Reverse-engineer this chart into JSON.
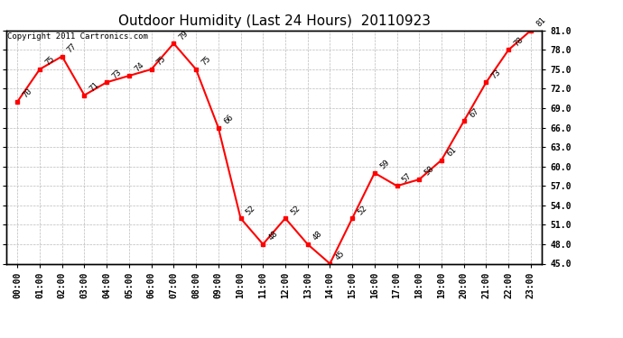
{
  "title": "Outdoor Humidity (Last 24 Hours)  20110923",
  "copyright": "Copyright 2011 Cartronics.com",
  "hours": [
    "00:00",
    "01:00",
    "02:00",
    "03:00",
    "04:00",
    "05:00",
    "06:00",
    "07:00",
    "08:00",
    "09:00",
    "10:00",
    "11:00",
    "12:00",
    "13:00",
    "14:00",
    "15:00",
    "16:00",
    "17:00",
    "18:00",
    "19:00",
    "20:00",
    "21:00",
    "22:00",
    "23:00"
  ],
  "values": [
    70,
    75,
    77,
    71,
    73,
    74,
    75,
    79,
    75,
    66,
    52,
    48,
    52,
    48,
    45,
    52,
    59,
    57,
    58,
    61,
    67,
    73,
    78,
    81
  ],
  "ylim_min": 45.0,
  "ylim_max": 81.0,
  "yticks": [
    45.0,
    48.0,
    51.0,
    54.0,
    57.0,
    60.0,
    63.0,
    66.0,
    69.0,
    72.0,
    75.0,
    78.0,
    81.0
  ],
  "line_color": "red",
  "marker": "s",
  "marker_size": 3,
  "marker_color": "red",
  "bg_color": "white",
  "grid_color": "#bbbbbb",
  "title_fontsize": 11,
  "label_fontsize": 7,
  "annotation_fontsize": 6.5,
  "copyright_fontsize": 6.5
}
